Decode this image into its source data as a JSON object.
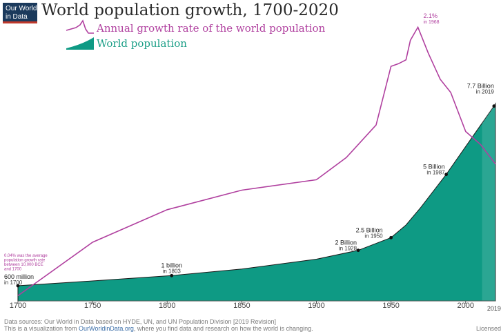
{
  "logo": {
    "line1": "Our World",
    "line2": "in Data"
  },
  "title": "World population growth, 1700-2020",
  "legend": {
    "line_label": "Annual growth rate of the world population",
    "area_label": "World population"
  },
  "colors": {
    "line": "#b0409f",
    "area": "#0e9a84",
    "title": "#2b2b2b",
    "footer": "#7a7a7a",
    "link": "#3b6ea8"
  },
  "chart_data": {
    "type": "area",
    "title": "World population growth, 1700-2020",
    "xlim": [
      1700,
      2020
    ],
    "x_ticks": [
      "1700",
      "1750",
      "1800",
      "1850",
      "1900",
      "1950",
      "2000"
    ],
    "grid": false,
    "legend_position": "top-left",
    "series": [
      {
        "name": "World population",
        "unit": "billion",
        "x": [
          1700,
          1750,
          1803,
          1850,
          1900,
          1928,
          1950,
          1960,
          1970,
          1987,
          2000,
          2019,
          2020
        ],
        "values": [
          0.6,
          0.79,
          1.0,
          1.26,
          1.65,
          2.0,
          2.5,
          3.0,
          3.7,
          5.0,
          6.1,
          7.7,
          7.8
        ]
      },
      {
        "name": "Annual growth rate of the world population",
        "unit": "percent",
        "x": [
          1700,
          1750,
          1800,
          1850,
          1900,
          1920,
          1940,
          1950,
          1955,
          1960,
          1963,
          1968,
          1975,
          1983,
          1990,
          2000,
          2010,
          2020
        ],
        "values": [
          0.04,
          0.45,
          0.7,
          0.85,
          0.93,
          1.1,
          1.35,
          1.8,
          1.82,
          1.85,
          2.0,
          2.1,
          1.9,
          1.7,
          1.6,
          1.3,
          1.2,
          1.05
        ]
      }
    ],
    "annotations": {
      "start_note": [
        "0.04% was the average",
        "population growth rate",
        "between 10,000 BCE",
        "and 1700"
      ],
      "peak": {
        "value": "2.1%",
        "label": "in 1968"
      },
      "milestones": [
        {
          "value": "600 million",
          "label": "in 1700"
        },
        {
          "value": "1 billion",
          "label": "in 1803"
        },
        {
          "value": "2 Billion",
          "label": "in 1928"
        },
        {
          "value": "2.5 Billion",
          "label": "in 1950"
        },
        {
          "value": "5 Billion",
          "label": "in 1987"
        },
        {
          "value": "7.7 Billion",
          "label": "in 2019"
        }
      ],
      "end_year": "2019"
    }
  },
  "footer": {
    "sources": "Data sources: Our World in Data based on HYDE, UN, and UN Population Division [2019 Revision]",
    "visualization_prefix": "This is a visualization from ",
    "link": "OurWorldinData.org",
    "visualization_suffix": ", where you find data and research on how the world is changing.",
    "license": "Licensed"
  }
}
